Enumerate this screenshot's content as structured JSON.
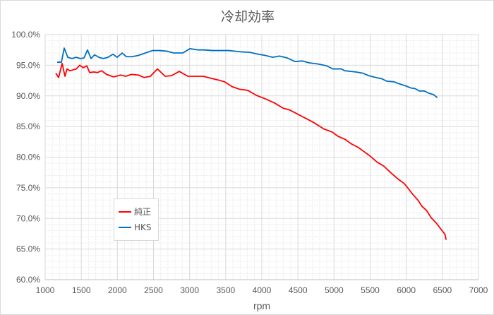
{
  "chart_data": {
    "type": "line",
    "title": "冷却効率",
    "xlabel": "rpm",
    "ylabel": "",
    "xlim": [
      1000,
      7000
    ],
    "ylim": [
      60,
      100
    ],
    "x_ticks": [
      "1000",
      "1500",
      "2000",
      "2500",
      "3000",
      "3500",
      "4000",
      "4500",
      "5000",
      "5500",
      "6000",
      "6500",
      "7000"
    ],
    "y_ticks": [
      "60.0%",
      "65.0%",
      "70.0%",
      "75.0%",
      "80.0%",
      "85.0%",
      "90.0%",
      "95.0%",
      "100.0%"
    ],
    "grid": true,
    "legend_position": "lower-left",
    "series": [
      {
        "name": "純正",
        "color": "#ff0000",
        "points": [
          [
            1147,
            93.7
          ],
          [
            1186,
            93.0
          ],
          [
            1235,
            95.3
          ],
          [
            1274,
            93.2
          ],
          [
            1303,
            94.4
          ],
          [
            1342,
            94.1
          ],
          [
            1430,
            94.4
          ],
          [
            1479,
            95.0
          ],
          [
            1528,
            94.6
          ],
          [
            1577,
            94.9
          ],
          [
            1616,
            93.8
          ],
          [
            1675,
            93.9
          ],
          [
            1723,
            93.8
          ],
          [
            1782,
            94.1
          ],
          [
            1850,
            93.5
          ],
          [
            1948,
            93.1
          ],
          [
            2046,
            93.4
          ],
          [
            2114,
            93.2
          ],
          [
            2193,
            93.5
          ],
          [
            2290,
            93.4
          ],
          [
            2369,
            93.0
          ],
          [
            2457,
            93.2
          ],
          [
            2554,
            94.4
          ],
          [
            2662,
            93.2
          ],
          [
            2750,
            93.3
          ],
          [
            2857,
            94.0
          ],
          [
            2975,
            93.2
          ],
          [
            3190,
            93.2
          ],
          [
            3287,
            92.9
          ],
          [
            3395,
            92.6
          ],
          [
            3483,
            92.3
          ],
          [
            3590,
            91.5
          ],
          [
            3688,
            91.1
          ],
          [
            3805,
            90.9
          ],
          [
            3923,
            90.1
          ],
          [
            4030,
            89.6
          ],
          [
            4167,
            88.9
          ],
          [
            4294,
            88.0
          ],
          [
            4386,
            87.7
          ],
          [
            4516,
            86.9
          ],
          [
            4712,
            85.7
          ],
          [
            4859,
            84.6
          ],
          [
            4974,
            84.1
          ],
          [
            5056,
            83.4
          ],
          [
            5154,
            82.9
          ],
          [
            5235,
            82.2
          ],
          [
            5333,
            81.6
          ],
          [
            5415,
            80.9
          ],
          [
            5497,
            80.2
          ],
          [
            5595,
            79.2
          ],
          [
            5693,
            78.5
          ],
          [
            5791,
            77.4
          ],
          [
            5889,
            76.4
          ],
          [
            5971,
            75.7
          ],
          [
            6020,
            75.0
          ],
          [
            6085,
            74.0
          ],
          [
            6167,
            72.9
          ],
          [
            6216,
            72.0
          ],
          [
            6281,
            71.3
          ],
          [
            6346,
            70.1
          ],
          [
            6412,
            69.3
          ],
          [
            6477,
            68.3
          ],
          [
            6536,
            67.4
          ],
          [
            6552,
            66.5
          ]
        ]
      },
      {
        "name": "HKS",
        "color": "#0070c0",
        "points": [
          [
            1166,
            95.5
          ],
          [
            1225,
            95.5
          ],
          [
            1264,
            97.8
          ],
          [
            1313,
            96.3
          ],
          [
            1371,
            96.1
          ],
          [
            1430,
            96.3
          ],
          [
            1489,
            96.1
          ],
          [
            1538,
            96.2
          ],
          [
            1586,
            97.5
          ],
          [
            1635,
            96.1
          ],
          [
            1684,
            96.7
          ],
          [
            1743,
            96.3
          ],
          [
            1802,
            96.1
          ],
          [
            1870,
            96.3
          ],
          [
            1938,
            96.8
          ],
          [
            1997,
            96.3
          ],
          [
            2066,
            97.0
          ],
          [
            2124,
            96.4
          ],
          [
            2202,
            96.4
          ],
          [
            2290,
            96.6
          ],
          [
            2388,
            97.0
          ],
          [
            2486,
            97.4
          ],
          [
            2584,
            97.4
          ],
          [
            2682,
            97.3
          ],
          [
            2780,
            97.0
          ],
          [
            2906,
            97.0
          ],
          [
            3004,
            97.7
          ],
          [
            3121,
            97.5
          ],
          [
            3200,
            97.5
          ],
          [
            3317,
            97.4
          ],
          [
            3542,
            97.4
          ],
          [
            3700,
            97.2
          ],
          [
            3835,
            97.1
          ],
          [
            3950,
            96.8
          ],
          [
            4050,
            96.6
          ],
          [
            4150,
            96.3
          ],
          [
            4245,
            96.5
          ],
          [
            4350,
            96.2
          ],
          [
            4460,
            95.6
          ],
          [
            4560,
            95.7
          ],
          [
            4650,
            95.4
          ],
          [
            4780,
            95.2
          ],
          [
            4900,
            94.9
          ],
          [
            4980,
            94.4
          ],
          [
            5100,
            94.4
          ],
          [
            5150,
            94.1
          ],
          [
            5300,
            93.9
          ],
          [
            5400,
            93.7
          ],
          [
            5480,
            93.3
          ],
          [
            5580,
            93.0
          ],
          [
            5660,
            92.8
          ],
          [
            5730,
            92.4
          ],
          [
            5830,
            92.3
          ],
          [
            5920,
            91.9
          ],
          [
            6000,
            91.6
          ],
          [
            6060,
            91.3
          ],
          [
            6120,
            91.2
          ],
          [
            6180,
            90.8
          ],
          [
            6250,
            90.8
          ],
          [
            6320,
            90.4
          ],
          [
            6380,
            90.2
          ],
          [
            6430,
            89.7
          ]
        ]
      }
    ]
  }
}
